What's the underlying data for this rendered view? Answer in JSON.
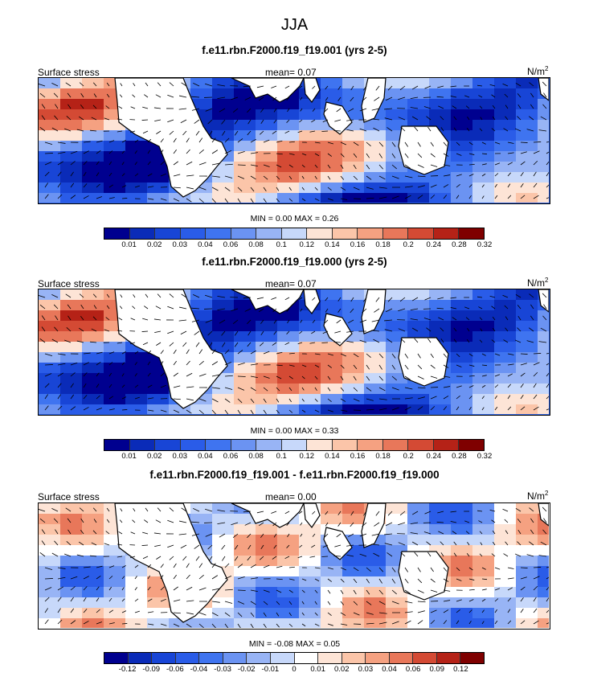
{
  "figure": {
    "title": "JJA"
  },
  "chart_data": [
    {
      "type": "heatmap",
      "title": "f.e11.rbn.F2000.f19_f19.001 (yrs 2-5)",
      "left_label": "Surface stress",
      "mean_label": "mean=",
      "mean_value": "0.07",
      "units_base": "N/m",
      "units_exp": "2",
      "min_label": "MIN =",
      "min_value": "0.00",
      "max_label": "MAX =",
      "max_value": "0.26",
      "colorbar": {
        "levels": [
          "0.01",
          "0.02",
          "0.03",
          "0.04",
          "0.06",
          "0.08",
          "0.1",
          "0.12",
          "0.14",
          "0.16",
          "0.18",
          "0.2",
          "0.24",
          "0.28",
          "0.32"
        ],
        "colors": [
          "#00008f",
          "#0a2bb8",
          "#1845d6",
          "#2a5ce8",
          "#3f74f0",
          "#6b93f2",
          "#98b4f5",
          "#c7d8fa",
          "#fde4d6",
          "#fbc5a9",
          "#f5a181",
          "#e8775a",
          "#d44a34",
          "#b52217",
          "#7f0000"
        ]
      }
    },
    {
      "type": "heatmap",
      "title": "f.e11.rbn.F2000.f19_f19.000 (yrs 2-5)",
      "left_label": "Surface stress",
      "mean_label": "mean=",
      "mean_value": "0.07",
      "units_base": "N/m",
      "units_exp": "2",
      "min_label": "MIN =",
      "min_value": "0.00",
      "max_label": "MAX =",
      "max_value": "0.33",
      "colorbar": {
        "levels": [
          "0.01",
          "0.02",
          "0.03",
          "0.04",
          "0.06",
          "0.08",
          "0.1",
          "0.12",
          "0.14",
          "0.16",
          "0.18",
          "0.2",
          "0.24",
          "0.28",
          "0.32"
        ],
        "colors": [
          "#00008f",
          "#0a2bb8",
          "#1845d6",
          "#2a5ce8",
          "#3f74f0",
          "#6b93f2",
          "#98b4f5",
          "#c7d8fa",
          "#fde4d6",
          "#fbc5a9",
          "#f5a181",
          "#e8775a",
          "#d44a34",
          "#b52217",
          "#7f0000"
        ]
      }
    },
    {
      "type": "heatmap",
      "title": "f.e11.rbn.F2000.f19_f19.001 - f.e11.rbn.F2000.f19_f19.000",
      "left_label": "Surface stress",
      "mean_label": "mean=",
      "mean_value": "0.00",
      "units_base": "N/m",
      "units_exp": "2",
      "min_label": "MIN =",
      "min_value": "-0.08",
      "max_label": "MAX =",
      "max_value": "0.05",
      "colorbar": {
        "levels": [
          "-0.12",
          "-0.09",
          "-0.06",
          "-0.04",
          "-0.03",
          "-0.02",
          "-0.01",
          "0",
          "0.01",
          "0.02",
          "0.03",
          "0.04",
          "0.06",
          "0.09",
          "0.12"
        ],
        "colors": [
          "#00008f",
          "#0a2bb8",
          "#1845d6",
          "#2a5ce8",
          "#3f74f0",
          "#6b93f2",
          "#98b4f5",
          "#c7d8fa",
          "#ffffff",
          "#fde4d6",
          "#fbc5a9",
          "#f5a181",
          "#e8775a",
          "#d44a34",
          "#b52217",
          "#7f0000"
        ]
      }
    }
  ]
}
